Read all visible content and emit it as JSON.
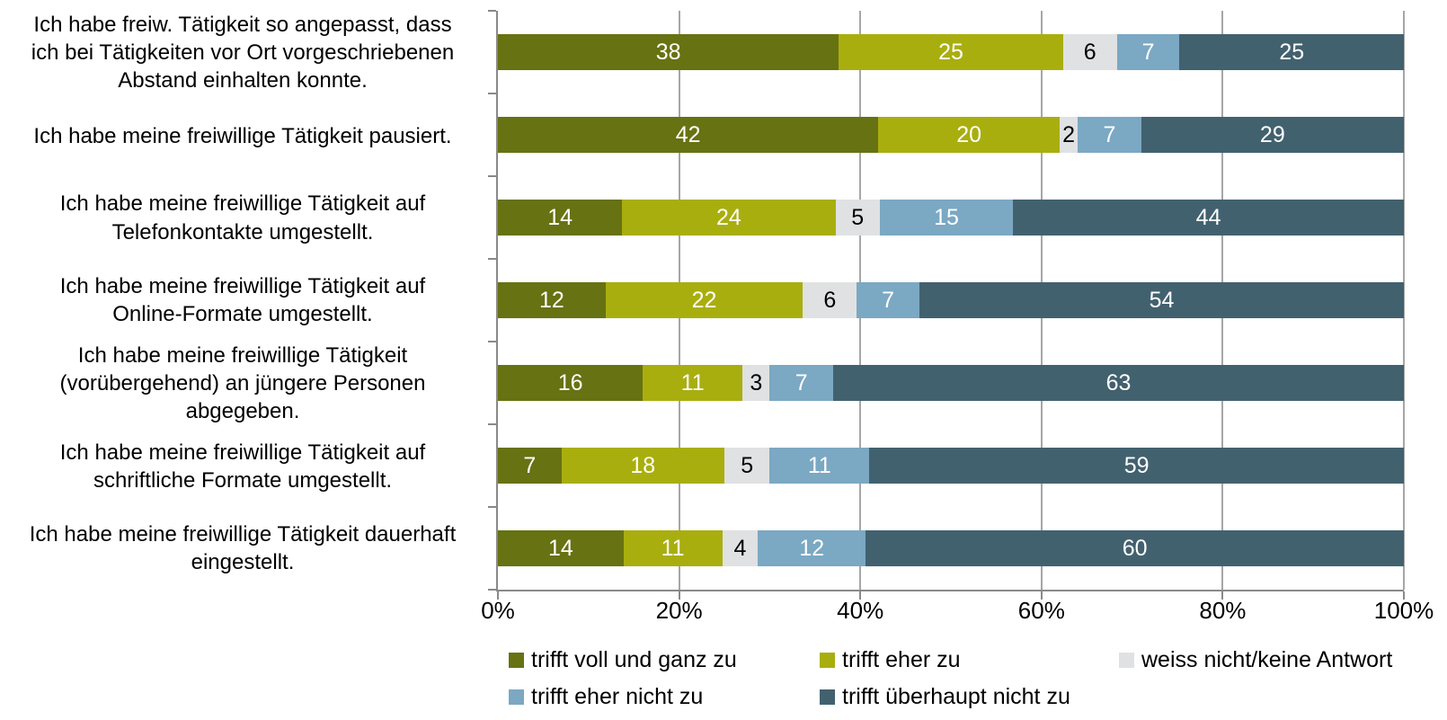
{
  "chart_data": {
    "type": "bar",
    "orientation": "horizontal",
    "stacked": true,
    "normalized_to_100_percent": true,
    "title": "",
    "xlabel": "",
    "ylabel": "",
    "xlim": [
      0,
      100
    ],
    "grid": "vertical",
    "x_ticks": [
      "0%",
      "20%",
      "40%",
      "60%",
      "80%",
      "100%"
    ],
    "categories": [
      "Ich habe freiw. Tätigkeit so angepasst, dass\nich bei Tätigkeiten vor Ort vorgeschriebenen\nAbstand einhalten konnte.",
      "Ich habe meine freiwillige Tätigkeit pausiert.",
      "Ich habe meine freiwillige Tätigkeit auf\nTelefonkontakte umgestellt.",
      "Ich habe meine freiwillige Tätigkeit auf\nOnline-Formate umgestellt.",
      "Ich habe meine freiwillige Tätigkeit\n(vorübergehend) an jüngere Personen\nabgegeben.",
      "Ich habe meine freiwillige Tätigkeit auf\nschriftliche Formate umgestellt.",
      "Ich habe meine freiwillige Tätigkeit dauerhaft\neingestellt."
    ],
    "series": [
      {
        "name": "trifft voll und ganz zu",
        "color": "#677212",
        "label_color": "#FFFFFF",
        "values": [
          38,
          42,
          14,
          12,
          16,
          7,
          14
        ]
      },
      {
        "name": "trifft eher zu",
        "color": "#A9AE0F",
        "label_color": "#FFFFFF",
        "values": [
          25,
          20,
          24,
          22,
          11,
          18,
          11
        ]
      },
      {
        "name": "weiss nicht/keine Antwort",
        "color": "#E0E1E2",
        "label_color": "#000000",
        "values": [
          6,
          2,
          5,
          6,
          3,
          5,
          4
        ]
      },
      {
        "name": "trifft eher nicht zu",
        "color": "#7BA8C3",
        "label_color": "#FFFFFF",
        "values": [
          7,
          7,
          15,
          7,
          7,
          11,
          12
        ]
      },
      {
        "name": "trifft überhaupt nicht zu",
        "color": "#42616F",
        "label_color": "#FFFFFF",
        "values": [
          25,
          29,
          44,
          54,
          63,
          59,
          60
        ]
      }
    ],
    "legend_position": "bottom",
    "legend_rows": [
      [
        0,
        1,
        2
      ],
      [
        3,
        4
      ]
    ]
  },
  "colors": {
    "background": "#FFFFFF",
    "axis": "#898989",
    "gridline": "#A6A6A6",
    "text": "#000000"
  }
}
